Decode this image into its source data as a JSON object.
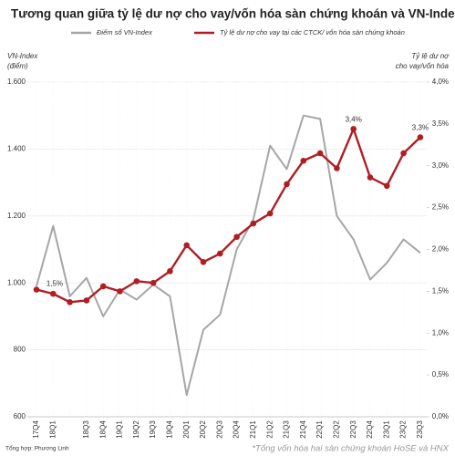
{
  "chart_data": {
    "type": "line",
    "title": "Tương quan giữa tỷ lệ dư nợ cho vay/vốn hóa sàn chứng khoán và VN-Index",
    "y_label": [
      "VN-Index",
      "(điểm)"
    ],
    "y2_label": [
      "Tỷ lệ dư nợ",
      "cho vay/vốn hóa"
    ],
    "source": "Tổng hợp: Phương Linh",
    "footnote": "*Tổng vốn hóa hai sàn chứng khoán HoSE và HNX",
    "categories": [
      "17Q4",
      "18Q1",
      null,
      "18Q3",
      "18Q4",
      "19Q1",
      "19Q2",
      "19Q3",
      "19Q4",
      "20Q1",
      "20Q2",
      "20Q3",
      "20Q4",
      "21Q1",
      "21Q2",
      "21Q3",
      "21Q4",
      "22Q1",
      "22Q2",
      "22Q3",
      "22Q4",
      "23Q1",
      "23Q2",
      "23Q3"
    ],
    "ylim": [
      600,
      1600
    ],
    "yticks": [
      600,
      800,
      {
        "value": 1000,
        "label": "1.000"
      },
      {
        "value": 1200,
        "label": "1.200"
      },
      {
        "value": 1400,
        "label": "1.400"
      },
      {
        "value": 1600,
        "label": "1.600"
      }
    ],
    "y2lim": [
      0,
      4
    ],
    "y2ticks": [
      {
        "value": 0,
        "label": "0,0%"
      },
      {
        "value": 0.5,
        "label": "0,5%"
      },
      {
        "value": 1,
        "label": "1,0%"
      },
      {
        "value": 1.5,
        "label": "1,5%"
      },
      {
        "value": 2,
        "label": "2,0%"
      },
      {
        "value": 2.5,
        "label": "2,5%"
      },
      {
        "value": 3,
        "label": "3,0%"
      },
      {
        "value": 3.5,
        "label": "3,5%"
      },
      {
        "value": 4,
        "label": "4,0%"
      }
    ],
    "series": [
      {
        "name": "Điểm số VN-Index",
        "color": "#a6a6a6",
        "values": [
          990,
          1170,
          960,
          1015,
          900,
          980,
          950,
          995,
          960,
          665,
          860,
          905,
          1100,
          1190,
          1410,
          1340,
          1500,
          1490,
          1200,
          1130,
          1010,
          1060,
          1130,
          1090
        ]
      },
      {
        "name": "Tỷ lệ dư nợ cho vay tại các CTCK/ vốn hóa sàn chứng khoán",
        "color": "#b01e23",
        "axis": "y2",
        "values": [
          1.52,
          1.47,
          1.37,
          1.39,
          1.56,
          1.5,
          1.62,
          1.6,
          1.74,
          2.05,
          1.85,
          1.95,
          2.15,
          2.31,
          2.43,
          2.78,
          3.06,
          3.15,
          2.97,
          3.44,
          2.86,
          2.76,
          3.15,
          3.34
        ],
        "value_labels": [
          "1,5%",
          null,
          null,
          null,
          null,
          null,
          null,
          null,
          null,
          null,
          null,
          null,
          null,
          null,
          null,
          null,
          null,
          null,
          null,
          "3,4%",
          null,
          null,
          null,
          "3,3%"
        ]
      }
    ],
    "grid": true
  }
}
